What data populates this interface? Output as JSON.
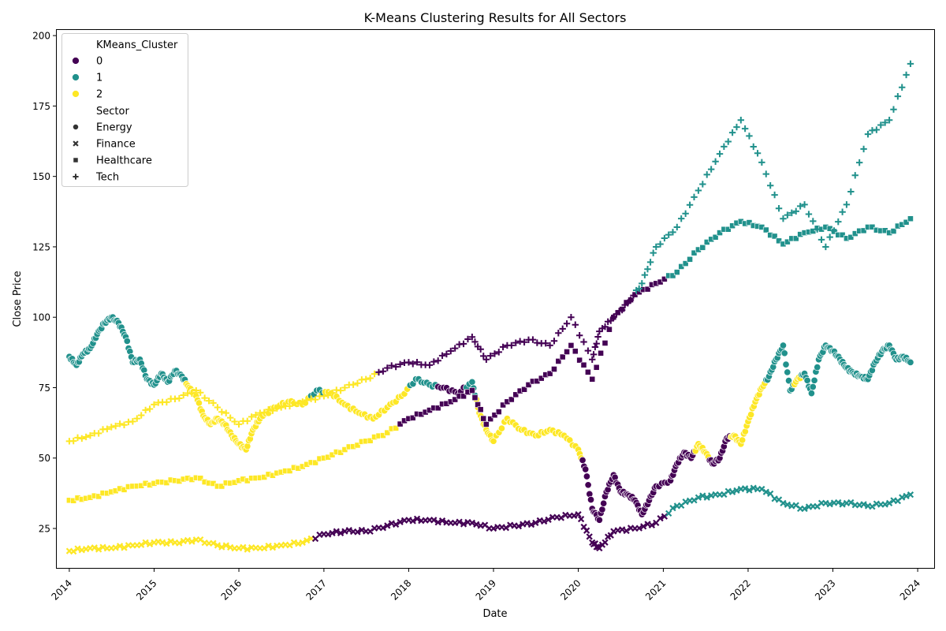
{
  "chart_data": {
    "type": "scatter",
    "title": "K-Means Clustering Results for All Sectors",
    "xlabel": "Date",
    "ylabel": "Close Price",
    "xlim": [
      "2013-11-08",
      "2024-03-12"
    ],
    "ylim": [
      11,
      202
    ],
    "x_ticks": [
      "2014",
      "2015",
      "2016",
      "2017",
      "2018",
      "2019",
      "2020",
      "2021",
      "2022",
      "2023",
      "2024"
    ],
    "y_ticks": [
      25,
      50,
      75,
      100,
      125,
      150,
      175,
      200
    ],
    "grid": false,
    "legend_position": "upper-left",
    "legend": {
      "hue_title": "KMeans_Cluster",
      "clusters": [
        {
          "label": "0",
          "color": "#440154"
        },
        {
          "label": "1",
          "color": "#21918c"
        },
        {
          "label": "2",
          "color": "#fde725"
        }
      ],
      "style_title": "Sector",
      "sectors": [
        {
          "label": "Energy",
          "marker": "circle"
        },
        {
          "label": "Finance",
          "marker": "x"
        },
        {
          "label": "Healthcare",
          "marker": "square"
        },
        {
          "label": "Tech",
          "marker": "plus"
        }
      ]
    },
    "series": [
      {
        "sector": "Energy",
        "marker": "circle",
        "points": [
          [
            "2014-01-01",
            86,
            1
          ],
          [
            "2014-02-01",
            83,
            1
          ],
          [
            "2014-03-01",
            87,
            1
          ],
          [
            "2014-04-01",
            89,
            1
          ],
          [
            "2014-05-01",
            94,
            1
          ],
          [
            "2014-06-01",
            98,
            1
          ],
          [
            "2014-07-01",
            100,
            1
          ],
          [
            "2014-08-01",
            98,
            1
          ],
          [
            "2014-09-01",
            93,
            1
          ],
          [
            "2014-10-01",
            84,
            1
          ],
          [
            "2014-11-01",
            85,
            1
          ],
          [
            "2014-12-01",
            78,
            1
          ],
          [
            "2015-01-01",
            76,
            1
          ],
          [
            "2015-02-01",
            80,
            1
          ],
          [
            "2015-03-01",
            77,
            1
          ],
          [
            "2015-04-01",
            81,
            1
          ],
          [
            "2015-05-01",
            79,
            1
          ],
          [
            "2015-06-01",
            75,
            2
          ],
          [
            "2015-07-01",
            72,
            2
          ],
          [
            "2015-08-01",
            65,
            2
          ],
          [
            "2015-09-01",
            62,
            2
          ],
          [
            "2015-10-01",
            64,
            2
          ],
          [
            "2015-11-01",
            62,
            2
          ],
          [
            "2015-12-01",
            58,
            2
          ],
          [
            "2016-01-01",
            55,
            2
          ],
          [
            "2016-02-01",
            53,
            2
          ],
          [
            "2016-03-01",
            60,
            2
          ],
          [
            "2016-04-01",
            64,
            2
          ],
          [
            "2016-06-01",
            68,
            2
          ],
          [
            "2016-08-01",
            70,
            2
          ],
          [
            "2016-10-01",
            69,
            2
          ],
          [
            "2016-12-01",
            74,
            1
          ],
          [
            "2017-02-01",
            73,
            2
          ],
          [
            "2017-04-01",
            69,
            2
          ],
          [
            "2017-06-01",
            66,
            2
          ],
          [
            "2017-08-01",
            64,
            2
          ],
          [
            "2017-10-01",
            68,
            2
          ],
          [
            "2017-12-01",
            72,
            2
          ],
          [
            "2018-02-01",
            78,
            1
          ],
          [
            "2018-04-01",
            76,
            1
          ],
          [
            "2018-06-01",
            75,
            0
          ],
          [
            "2018-08-01",
            73,
            0
          ],
          [
            "2018-10-01",
            77,
            1
          ],
          [
            "2018-11-01",
            66,
            2
          ],
          [
            "2018-12-01",
            60,
            2
          ],
          [
            "2019-01-01",
            56,
            2
          ],
          [
            "2019-03-01",
            64,
            2
          ],
          [
            "2019-05-01",
            60,
            2
          ],
          [
            "2019-07-01",
            58,
            2
          ],
          [
            "2019-09-01",
            60,
            2
          ],
          [
            "2019-11-01",
            58,
            2
          ],
          [
            "2020-01-01",
            53,
            2
          ],
          [
            "2020-02-01",
            46,
            0
          ],
          [
            "2020-03-01",
            32,
            0
          ],
          [
            "2020-04-01",
            28,
            0
          ],
          [
            "2020-05-01",
            38,
            0
          ],
          [
            "2020-06-01",
            44,
            0
          ],
          [
            "2020-07-01",
            38,
            0
          ],
          [
            "2020-08-01",
            37,
            0
          ],
          [
            "2020-09-01",
            35,
            0
          ],
          [
            "2020-10-01",
            30,
            0
          ],
          [
            "2020-11-01",
            35,
            0
          ],
          [
            "2020-12-01",
            40,
            0
          ],
          [
            "2021-02-01",
            42,
            0
          ],
          [
            "2021-03-01",
            48,
            0
          ],
          [
            "2021-04-01",
            52,
            0
          ],
          [
            "2021-05-01",
            50,
            0
          ],
          [
            "2021-06-01",
            55,
            2
          ],
          [
            "2021-07-01",
            52,
            2
          ],
          [
            "2021-08-01",
            48,
            0
          ],
          [
            "2021-09-01",
            50,
            0
          ],
          [
            "2021-10-01",
            57,
            0
          ],
          [
            "2021-11-01",
            58,
            2
          ],
          [
            "2021-12-01",
            55,
            2
          ],
          [
            "2022-01-01",
            63,
            2
          ],
          [
            "2022-02-01",
            70,
            2
          ],
          [
            "2022-03-01",
            75,
            2
          ],
          [
            "2022-04-01",
            79,
            1
          ],
          [
            "2022-05-01",
            85,
            1
          ],
          [
            "2022-06-01",
            90,
            1
          ],
          [
            "2022-07-01",
            74,
            1
          ],
          [
            "2022-08-01",
            78,
            2
          ],
          [
            "2022-09-01",
            80,
            1
          ],
          [
            "2022-10-01",
            73,
            1
          ],
          [
            "2022-11-01",
            85,
            1
          ],
          [
            "2022-12-01",
            90,
            1
          ],
          [
            "2023-01-01",
            88,
            1
          ],
          [
            "2023-02-01",
            85,
            1
          ],
          [
            "2023-03-01",
            82,
            1
          ],
          [
            "2023-04-01",
            80,
            1
          ],
          [
            "2023-05-01",
            79,
            1
          ],
          [
            "2023-06-01",
            78,
            1
          ],
          [
            "2023-07-01",
            84,
            1
          ],
          [
            "2023-08-01",
            88,
            1
          ],
          [
            "2023-09-01",
            90,
            1
          ],
          [
            "2023-10-01",
            85,
            1
          ],
          [
            "2023-11-01",
            86,
            1
          ],
          [
            "2023-12-01",
            84,
            1
          ]
        ]
      },
      {
        "sector": "Finance",
        "marker": "x",
        "points": [
          [
            "2014-01-01",
            17,
            2
          ],
          [
            "2014-04-01",
            18,
            2
          ],
          [
            "2014-07-01",
            18,
            2
          ],
          [
            "2014-10-01",
            19,
            2
          ],
          [
            "2015-01-01",
            20,
            2
          ],
          [
            "2015-04-01",
            20,
            2
          ],
          [
            "2015-07-01",
            21,
            2
          ],
          [
            "2015-10-01",
            19,
            2
          ],
          [
            "2016-01-01",
            18,
            2
          ],
          [
            "2016-04-01",
            18,
            2
          ],
          [
            "2016-07-01",
            19,
            2
          ],
          [
            "2016-10-01",
            20,
            2
          ],
          [
            "2017-01-01",
            23,
            0
          ],
          [
            "2017-04-01",
            24,
            0
          ],
          [
            "2017-07-01",
            24,
            0
          ],
          [
            "2017-10-01",
            26,
            0
          ],
          [
            "2018-01-01",
            28,
            0
          ],
          [
            "2018-04-01",
            28,
            0
          ],
          [
            "2018-07-01",
            27,
            0
          ],
          [
            "2018-10-01",
            27,
            0
          ],
          [
            "2019-01-01",
            25,
            0
          ],
          [
            "2019-04-01",
            26,
            0
          ],
          [
            "2019-07-01",
            27,
            0
          ],
          [
            "2019-10-01",
            29,
            0
          ],
          [
            "2020-01-01",
            30,
            0
          ],
          [
            "2020-03-01",
            20,
            0
          ],
          [
            "2020-04-01",
            18,
            0
          ],
          [
            "2020-06-01",
            24,
            0
          ],
          [
            "2020-09-01",
            25,
            0
          ],
          [
            "2020-12-01",
            27,
            0
          ],
          [
            "2021-03-01",
            33,
            1
          ],
          [
            "2021-06-01",
            36,
            1
          ],
          [
            "2021-09-01",
            37,
            1
          ],
          [
            "2021-12-01",
            39,
            1
          ],
          [
            "2022-03-01",
            39,
            1
          ],
          [
            "2022-06-01",
            34,
            1
          ],
          [
            "2022-09-01",
            32,
            1
          ],
          [
            "2022-12-01",
            34,
            1
          ],
          [
            "2023-03-01",
            34,
            1
          ],
          [
            "2023-06-01",
            33,
            1
          ],
          [
            "2023-09-01",
            34,
            1
          ],
          [
            "2023-12-01",
            37,
            1
          ]
        ]
      },
      {
        "sector": "Healthcare",
        "marker": "square",
        "points": [
          [
            "2014-01-01",
            35,
            2
          ],
          [
            "2014-04-01",
            36,
            2
          ],
          [
            "2014-07-01",
            38,
            2
          ],
          [
            "2014-10-01",
            40,
            2
          ],
          [
            "2015-01-01",
            41,
            2
          ],
          [
            "2015-04-01",
            42,
            2
          ],
          [
            "2015-07-01",
            43,
            2
          ],
          [
            "2015-10-01",
            40,
            2
          ],
          [
            "2016-01-01",
            42,
            2
          ],
          [
            "2016-04-01",
            43,
            2
          ],
          [
            "2016-07-01",
            45,
            2
          ],
          [
            "2016-10-01",
            47,
            2
          ],
          [
            "2017-01-01",
            50,
            2
          ],
          [
            "2017-04-01",
            53,
            2
          ],
          [
            "2017-07-01",
            56,
            2
          ],
          [
            "2017-10-01",
            59,
            2
          ],
          [
            "2018-01-01",
            64,
            0
          ],
          [
            "2018-04-01",
            67,
            0
          ],
          [
            "2018-07-01",
            70,
            0
          ],
          [
            "2018-10-01",
            74,
            0
          ],
          [
            "2018-12-01",
            62,
            0
          ],
          [
            "2019-03-01",
            70,
            0
          ],
          [
            "2019-06-01",
            76,
            0
          ],
          [
            "2019-09-01",
            80,
            0
          ],
          [
            "2019-12-01",
            90,
            0
          ],
          [
            "2020-03-01",
            78,
            0
          ],
          [
            "2020-06-01",
            100,
            0
          ],
          [
            "2020-09-01",
            108,
            0
          ],
          [
            "2020-12-01",
            112,
            0
          ],
          [
            "2021-03-01",
            116,
            1
          ],
          [
            "2021-06-01",
            124,
            1
          ],
          [
            "2021-09-01",
            130,
            1
          ],
          [
            "2021-12-01",
            134,
            1
          ],
          [
            "2022-03-01",
            132,
            1
          ],
          [
            "2022-06-01",
            126,
            1
          ],
          [
            "2022-09-01",
            130,
            1
          ],
          [
            "2022-12-01",
            132,
            1
          ],
          [
            "2023-03-01",
            128,
            1
          ],
          [
            "2023-06-01",
            132,
            1
          ],
          [
            "2023-09-01",
            130,
            1
          ],
          [
            "2023-12-01",
            135,
            1
          ]
        ]
      },
      {
        "sector": "Tech",
        "marker": "plus",
        "points": [
          [
            "2014-01-01",
            56,
            2
          ],
          [
            "2014-04-01",
            58,
            2
          ],
          [
            "2014-07-01",
            61,
            2
          ],
          [
            "2014-10-01",
            63,
            2
          ],
          [
            "2015-01-01",
            69,
            2
          ],
          [
            "2015-04-01",
            71,
            2
          ],
          [
            "2015-07-01",
            74,
            2
          ],
          [
            "2015-10-01",
            68,
            2
          ],
          [
            "2016-01-01",
            62,
            2
          ],
          [
            "2016-04-01",
            66,
            2
          ],
          [
            "2016-07-01",
            68,
            2
          ],
          [
            "2016-10-01",
            70,
            2
          ],
          [
            "2017-01-01",
            72,
            2
          ],
          [
            "2017-04-01",
            75,
            2
          ],
          [
            "2017-07-01",
            78,
            2
          ],
          [
            "2017-10-01",
            82,
            0
          ],
          [
            "2018-01-01",
            84,
            0
          ],
          [
            "2018-04-01",
            83,
            0
          ],
          [
            "2018-07-01",
            88,
            0
          ],
          [
            "2018-10-01",
            93,
            0
          ],
          [
            "2018-12-01",
            85,
            0
          ],
          [
            "2019-03-01",
            90,
            0
          ],
          [
            "2019-06-01",
            92,
            0
          ],
          [
            "2019-09-01",
            90,
            0
          ],
          [
            "2019-12-01",
            100,
            0
          ],
          [
            "2020-03-01",
            85,
            0
          ],
          [
            "2020-04-01",
            95,
            0
          ],
          [
            "2020-06-01",
            100,
            0
          ],
          [
            "2020-08-01",
            105,
            0
          ],
          [
            "2020-10-01",
            112,
            1
          ],
          [
            "2020-12-01",
            125,
            1
          ],
          [
            "2021-03-01",
            132,
            1
          ],
          [
            "2021-06-01",
            145,
            1
          ],
          [
            "2021-09-01",
            158,
            1
          ],
          [
            "2021-12-01",
            170,
            1
          ],
          [
            "2022-03-01",
            155,
            1
          ],
          [
            "2022-06-01",
            135,
            1
          ],
          [
            "2022-09-01",
            140,
            1
          ],
          [
            "2022-12-01",
            125,
            1
          ],
          [
            "2023-03-01",
            140,
            1
          ],
          [
            "2023-06-01",
            165,
            1
          ],
          [
            "2023-09-01",
            170,
            1
          ],
          [
            "2023-12-01",
            190,
            1
          ]
        ]
      }
    ]
  }
}
